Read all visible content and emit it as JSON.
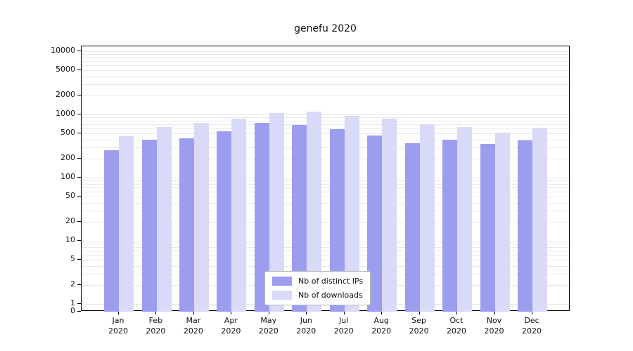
{
  "chart_data": {
    "type": "bar",
    "title": "genefu 2020",
    "yscale": "symlog",
    "ylim": [
      0,
      10000
    ],
    "grid": "horizontal-minor-log",
    "legend_position": "lower center",
    "yticks": [
      10000,
      5000,
      2000,
      1000,
      500,
      200,
      100,
      50,
      20,
      10,
      5,
      2,
      1,
      0
    ],
    "categories": [
      "Jan",
      "Feb",
      "Mar",
      "Apr",
      "May",
      "Jun",
      "Jul",
      "Aug",
      "Sep",
      "Oct",
      "Nov",
      "Dec"
    ],
    "year": "2020",
    "series": [
      {
        "key": "ips",
        "name": "Nb of distinct IPs",
        "color": "#9d9df0",
        "values": [
          270,
          400,
          420,
          540,
          730,
          680,
          580,
          460,
          350,
          400,
          340,
          390
        ]
      },
      {
        "key": "downloads",
        "name": "Nb of downloads",
        "color": "#d9d9f8",
        "values": [
          450,
          630,
          730,
          850,
          1050,
          1100,
          950,
          850,
          700,
          630,
          520,
          620
        ]
      }
    ]
  }
}
